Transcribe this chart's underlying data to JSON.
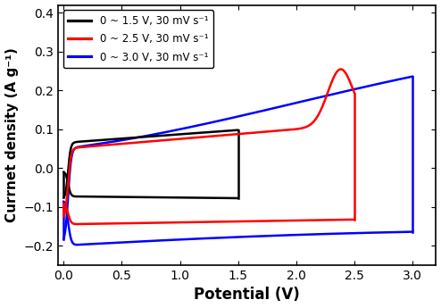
{
  "title": "",
  "xlabel": "Potential (V)",
  "ylabel": "Currnet density (A g⁻¹)",
  "xlim": [
    -0.05,
    3.2
  ],
  "ylim": [
    -0.25,
    0.42
  ],
  "xticks": [
    0.0,
    0.5,
    1.0,
    1.5,
    2.0,
    2.5,
    3.0
  ],
  "yticks": [
    -0.2,
    -0.1,
    0.0,
    0.1,
    0.2,
    0.3,
    0.4
  ],
  "legend": [
    {
      "label": "0 ~ 1.5 V, 30 mV s⁻¹",
      "color": "black"
    },
    {
      "label": "0 ~ 2.5 V, 30 mV s⁻¹",
      "color": "red"
    },
    {
      "label": "0 ~ 3.0 V, 30 mV s⁻¹",
      "color": "blue"
    }
  ],
  "background_color": "#ffffff",
  "linewidth": 1.8
}
